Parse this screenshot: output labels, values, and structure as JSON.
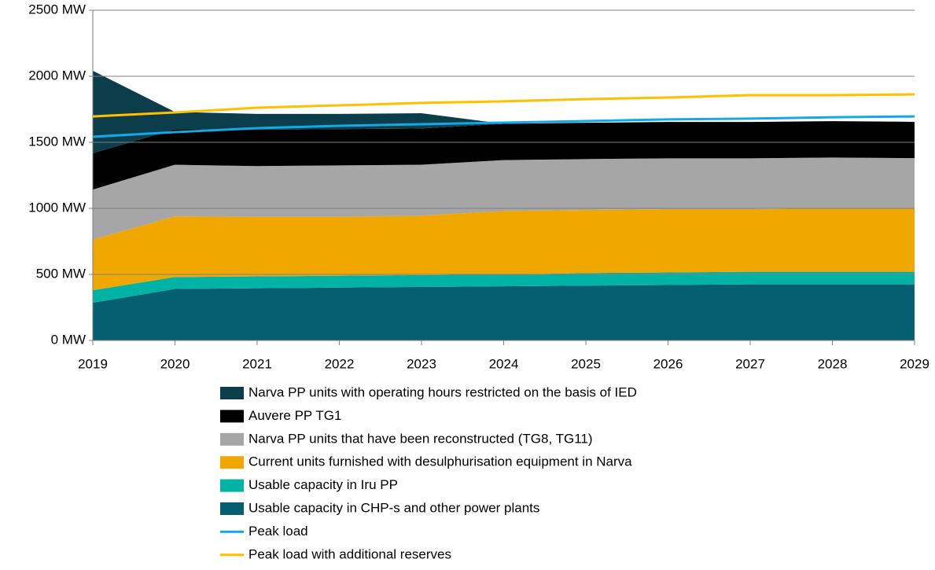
{
  "chart_data": {
    "type": "area",
    "x": [
      2019,
      2020,
      2021,
      2022,
      2023,
      2024,
      2025,
      2026,
      2027,
      2028,
      2029
    ],
    "xlim": [
      2019,
      2029
    ],
    "xticks": [
      2019,
      2020,
      2021,
      2022,
      2023,
      2024,
      2025,
      2026,
      2027,
      2028,
      2029
    ],
    "ylim": [
      0,
      2500
    ],
    "yticks": [
      {
        "value": 0,
        "label": "0 MW"
      },
      {
        "value": 500,
        "label": "500 MW"
      },
      {
        "value": 1000,
        "label": "1000 MW"
      },
      {
        "value": 1500,
        "label": "1500 MW"
      },
      {
        "value": 2000,
        "label": "2000 MW"
      },
      {
        "value": 2500,
        "label": "2500 MW"
      }
    ],
    "grid": true,
    "stacked": true,
    "legend": "bottom",
    "series": [
      {
        "name": "Narva PP units with operating hours restricted on the basis of IED",
        "type": "area",
        "color": "#0b3d4b",
        "values": [
          625,
          130,
          120,
          115,
          115,
          0,
          0,
          0,
          0,
          0,
          0
        ]
      },
      {
        "name": "Auvere PP TG1",
        "type": "area",
        "color": "#000000",
        "values": [
          275,
          270,
          275,
          275,
          275,
          275,
          275,
          275,
          275,
          275,
          275
        ]
      },
      {
        "name": "Narva PP units that have been reconstructed (TG8, TG11)",
        "type": "area",
        "color": "#a6a6a6",
        "values": [
          380,
          390,
          385,
          390,
          385,
          385,
          385,
          385,
          385,
          385,
          380
        ]
      },
      {
        "name": "Current units furnished with desulphurisation equipment in Narva",
        "type": "area",
        "color": "#f0a800",
        "values": [
          382,
          460,
          450,
          445,
          450,
          480,
          478,
          479,
          474,
          480,
          480
        ]
      },
      {
        "name": "Usable capacity in Iru PP",
        "type": "area",
        "color": "#00b3a4",
        "values": [
          95,
          90,
          90,
          90,
          90,
          90,
          95,
          95,
          95,
          95,
          95
        ]
      },
      {
        "name": "Usable capacity in CHP-s and other power plants",
        "type": "area",
        "color": "#045f71",
        "values": [
          285,
          390,
          395,
          400,
          405,
          410,
          415,
          420,
          425,
          425,
          425
        ]
      },
      {
        "name": "Peak load",
        "type": "line",
        "color": "#12a9e6",
        "values": [
          1542,
          1577,
          1607,
          1625,
          1637,
          1649,
          1661,
          1673,
          1679,
          1690,
          1696
        ]
      },
      {
        "name": "Peak load with additional reserves",
        "type": "line",
        "color": "#ffc000",
        "values": [
          1696,
          1726,
          1762,
          1780,
          1798,
          1810,
          1827,
          1839,
          1857,
          1857,
          1863
        ]
      }
    ]
  }
}
